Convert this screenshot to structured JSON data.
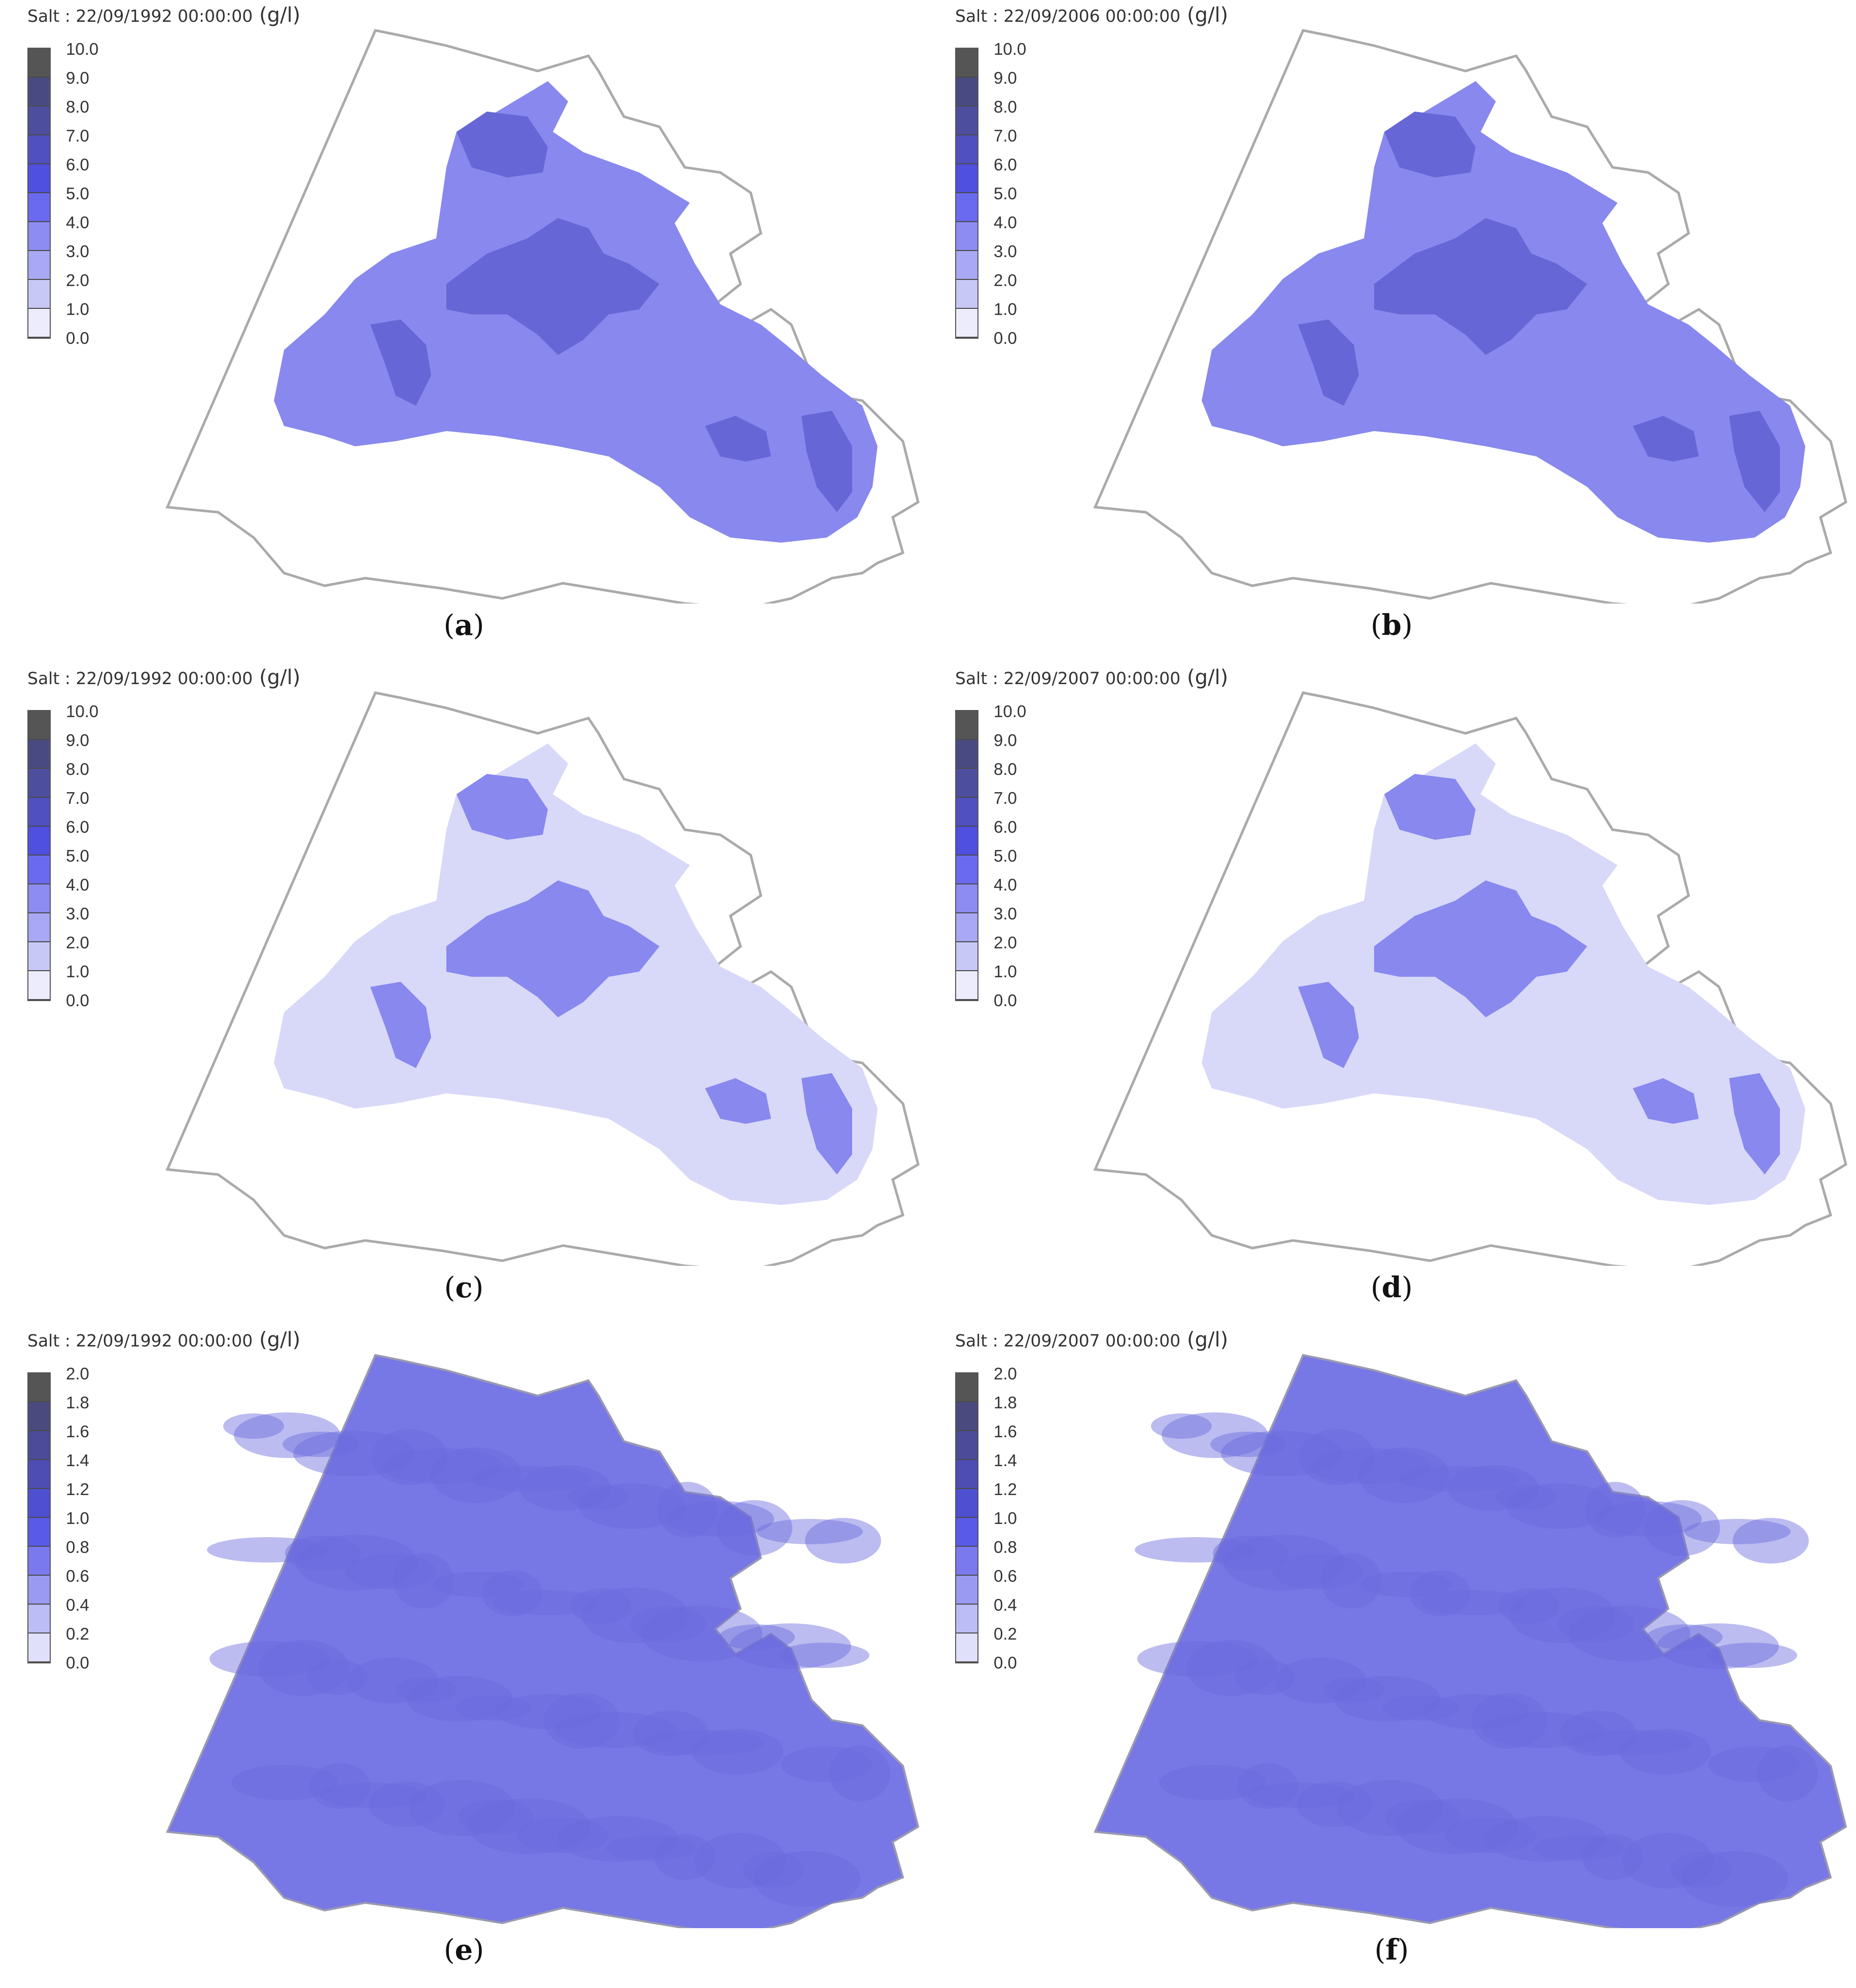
{
  "panels": [
    {
      "id": "a",
      "title": "Salt : 22/09/1992 00:00:00",
      "unit": "(g/l)",
      "caption": "a",
      "scale": "ten",
      "mode": "high"
    },
    {
      "id": "b",
      "title": "Salt : 22/09/2006 00:00:00",
      "unit": "(g/l)",
      "caption": "b",
      "scale": "ten",
      "mode": "high"
    },
    {
      "id": "c",
      "title": "Salt : 22/09/1992 00:00:00",
      "unit": "(g/l)",
      "caption": "c",
      "scale": "ten",
      "mode": "low"
    },
    {
      "id": "d",
      "title": "Salt : 22/09/2007 00:00:00",
      "unit": "(g/l)",
      "caption": "d",
      "scale": "ten",
      "mode": "mixed"
    },
    {
      "id": "e",
      "title": "Salt : 22/09/1992 00:00:00",
      "unit": "(g/l)",
      "caption": "e",
      "scale": "two",
      "mode": "full"
    },
    {
      "id": "f",
      "title": "Salt : 22/09/2007 00:00:00",
      "unit": "(g/l)",
      "caption": "f",
      "scale": "two",
      "mode": "full"
    }
  ],
  "legends": {
    "ten": [
      "10.0",
      "9.0",
      "8.0",
      "7.0",
      "6.0",
      "5.0",
      "4.0",
      "3.0",
      "2.0",
      "1.0",
      "0.0"
    ],
    "two": [
      "2.0",
      "1.8",
      "1.6",
      "1.4",
      "1.2",
      "1.0",
      "0.8",
      "0.6",
      "0.4",
      "0.2",
      "0.0"
    ]
  },
  "colors": {
    "ten": [
      "#555555",
      "#4a4a82",
      "#4e4e9e",
      "#5050c0",
      "#4f4fe0",
      "#6a6af0",
      "#8c8cf2",
      "#a8a8f4",
      "#c8c8f7",
      "#ececfc"
    ],
    "two": [
      "#555555",
      "#4a4a7e",
      "#4b4b98",
      "#4d4db4",
      "#4f4fd2",
      "#5a5ae8",
      "#7a7aee",
      "#9a9af2",
      "#bcbcf6",
      "#e0e0fb"
    ],
    "outline": "#aaaaaa",
    "fill_low": "#d8d8f9",
    "fill_mid": "#8888ee",
    "fill_high": "#6666d6",
    "fill_full": "#7777e6"
  }
}
